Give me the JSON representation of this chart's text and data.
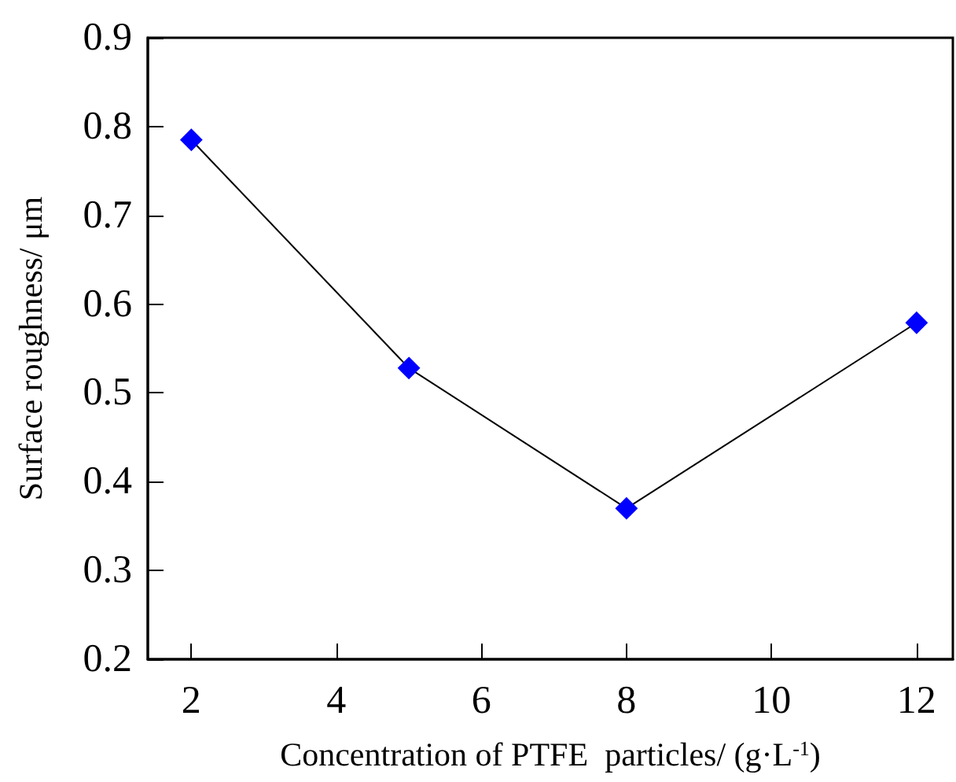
{
  "chart_data": {
    "type": "line",
    "xlabel": "Concentration of PTFE  particles/ (g·L$^{-1}$)",
    "ylabel": "Surface roughness/ μm",
    "x": [
      2,
      5,
      8,
      12
    ],
    "series": [
      {
        "color": "#0000ff",
        "values": [
          0.785,
          0.528,
          0.37,
          0.579
        ]
      }
    ],
    "xlim": [
      1.4,
      12.5
    ],
    "xticks": [
      2,
      4,
      6,
      8,
      10,
      12
    ],
    "ylim": [
      0.2,
      0.9
    ],
    "yticks": [
      0.2,
      0.3,
      0.4,
      0.5,
      0.6,
      0.7,
      0.8,
      0.9
    ],
    "marker": "diamond",
    "line_style": "solid"
  }
}
